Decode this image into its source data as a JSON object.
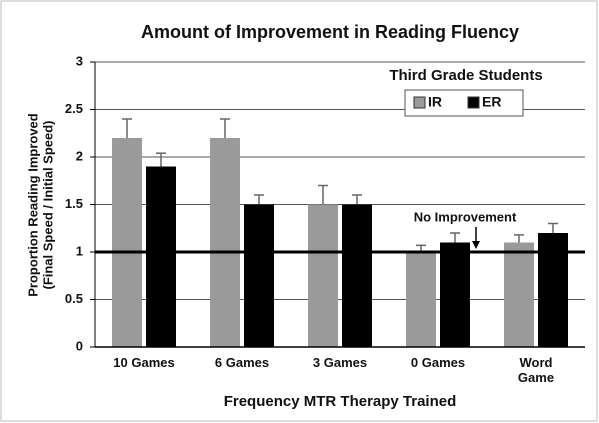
{
  "chart_data": {
    "type": "bar",
    "title": "Amount of Improvement in  Reading Fluency",
    "subtitle": "Third Grade Students",
    "x_label": "Frequency MTR Therapy Trained",
    "y_label": [
      "Proportion Reading Improved",
      "(Final Speed / Initial Speed)"
    ],
    "categories": [
      "10 Games",
      "6 Games",
      "3 Games",
      "0 Games",
      "Word Game"
    ],
    "series": [
      {
        "name": "IR",
        "color": "#9a9a9a",
        "values": [
          2.2,
          2.2,
          1.5,
          1.0,
          1.1
        ],
        "errors": [
          0.2,
          0.2,
          0.2,
          0.07,
          0.08
        ]
      },
      {
        "name": "ER",
        "color": "#000000",
        "values": [
          1.9,
          1.5,
          1.5,
          1.1,
          1.2
        ],
        "errors": [
          0.14,
          0.1,
          0.1,
          0.1,
          0.1
        ]
      }
    ],
    "ylim": [
      0,
      3
    ],
    "yticks": [
      0,
      0.5,
      1,
      1.5,
      2,
      2.5,
      3
    ],
    "grid": true,
    "reference_line": 1,
    "annotation": "No Improvement",
    "legend": "top-right"
  }
}
